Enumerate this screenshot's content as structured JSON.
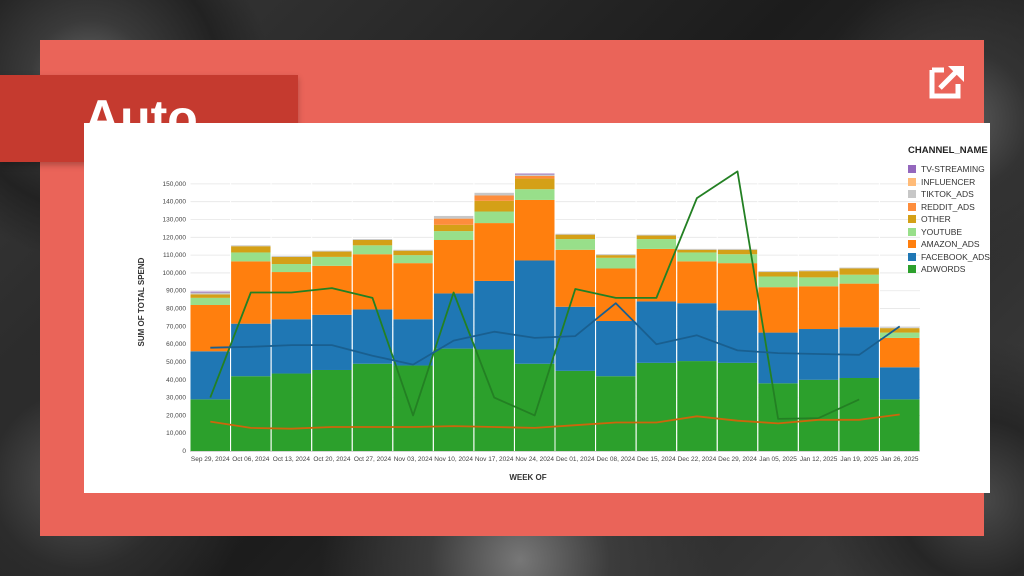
{
  "banner": {
    "label": "Auto"
  },
  "logo_icon": "arrow-square-logo-icon",
  "colors": {
    "coral": "#ea6459",
    "label_bg": "#c53a2f"
  },
  "chart_data": {
    "type": "bar",
    "stacked": true,
    "xlabel": "WEEK OF",
    "ylabel": "SUM OF TOTAL SPEND",
    "ylim": [
      0,
      155000
    ],
    "yticks": [
      0,
      10000,
      20000,
      30000,
      40000,
      50000,
      60000,
      70000,
      80000,
      90000,
      100000,
      110000,
      120000,
      130000,
      140000,
      150000
    ],
    "ytick_labels": [
      "0",
      "10,000",
      "20,000",
      "30,000",
      "40,000",
      "50,000",
      "60,000",
      "70,000",
      "80,000",
      "90,000",
      "100,000",
      "110,000",
      "120,000",
      "130,000",
      "140,000",
      "150,000"
    ],
    "grid": true,
    "legend_title": "CHANNEL_NAME",
    "legend_position": "right",
    "categories": [
      "Sep 29, 2024",
      "Oct 06, 2024",
      "Oct 13, 2024",
      "Oct 20, 2024",
      "Oct 27, 2024",
      "Nov 03, 2024",
      "Nov 10, 2024",
      "Nov 17, 2024",
      "Nov 24, 2024",
      "Dec 01, 2024",
      "Dec 08, 2024",
      "Dec 15, 2024",
      "Dec 22, 2024",
      "Dec 29, 2024",
      "Jan 05, 2025",
      "Jan 12, 2025",
      "Jan 19, 2025",
      "Jan 26, 2025"
    ],
    "series": [
      {
        "name": "ADWORDS",
        "color": "#2ca02c",
        "values": [
          29000,
          42000,
          43500,
          45500,
          49000,
          48000,
          57500,
          57000,
          49000,
          45000,
          42000,
          49500,
          50500,
          49500,
          38000,
          40000,
          41000,
          29000
        ]
      },
      {
        "name": "FACEBOOK_ADS",
        "color": "#1f77b4",
        "values": [
          27000,
          29500,
          30500,
          31000,
          30500,
          26000,
          31000,
          38500,
          58000,
          36000,
          31000,
          34500,
          32500,
          29500,
          28500,
          28500,
          28500,
          18000
        ]
      },
      {
        "name": "AMAZON_ADS",
        "color": "#ff7f0e",
        "values": [
          26000,
          35000,
          26500,
          27500,
          31000,
          31500,
          30000,
          32500,
          34000,
          32000,
          29500,
          29500,
          23500,
          26500,
          25500,
          24000,
          24500,
          16500
        ]
      },
      {
        "name": "YOUTUBE",
        "color": "#98df8a",
        "values": [
          4000,
          5000,
          4500,
          5000,
          5000,
          4500,
          5000,
          6500,
          6000,
          6000,
          6000,
          5500,
          5000,
          5000,
          6000,
          5000,
          5000,
          3000
        ]
      },
      {
        "name": "OTHER",
        "color": "#d4a017",
        "values": [
          2000,
          3500,
          4000,
          3000,
          3000,
          2500,
          3500,
          6000,
          6000,
          2500,
          1500,
          2000,
          1500,
          2500,
          2500,
          3500,
          3500,
          2500
        ]
      },
      {
        "name": "REDDIT_ADS",
        "color": "#fd8d3c",
        "values": [
          0,
          0,
          0,
          0,
          0,
          0,
          3500,
          3000,
          1500,
          0,
          0,
          0,
          0,
          0,
          0,
          0,
          0,
          0
        ]
      },
      {
        "name": "TIKTOK_ADS",
        "color": "#c7c7c7",
        "values": [
          1000,
          500,
          500,
          500,
          500,
          500,
          1500,
          1500,
          800,
          500,
          500,
          500,
          500,
          500,
          500,
          500,
          500,
          500
        ]
      },
      {
        "name": "INFLUENCER",
        "color": "#ffbb78",
        "values": [
          0,
          0,
          0,
          0,
          0,
          0,
          0,
          0,
          0,
          0,
          0,
          0,
          0,
          0,
          0,
          0,
          0,
          0
        ]
      },
      {
        "name": "TV-STREAMING",
        "color": "#9467bd",
        "values": [
          500,
          0,
          0,
          0,
          0,
          0,
          0,
          0,
          500,
          0,
          0,
          0,
          0,
          0,
          0,
          0,
          0,
          0
        ]
      }
    ],
    "lines": [
      {
        "color": "#2ca02c",
        "values": [
          30000,
          89000,
          89000,
          91500,
          86000,
          20000,
          89000,
          30000,
          20000,
          91000,
          86000,
          86000,
          142000,
          157000,
          18000,
          18500,
          29000,
          null
        ]
      },
      {
        "color": "#1f77b4",
        "values": [
          58000,
          58500,
          59500,
          59500,
          53500,
          48500,
          62000,
          67000,
          63500,
          64500,
          83000,
          60000,
          65000,
          56500,
          55000,
          54500,
          54000,
          70000
        ]
      },
      {
        "color": "#ff7f0e",
        "values": [
          16500,
          13000,
          12500,
          13500,
          13500,
          13500,
          14000,
          13500,
          13000,
          14500,
          16000,
          16000,
          19500,
          17000,
          15500,
          17500,
          17500,
          20500
        ]
      }
    ]
  },
  "legend": {
    "title": "CHANNEL_NAME",
    "items": [
      {
        "label": "TV-STREAMING",
        "color": "#9467bd"
      },
      {
        "label": "INFLUENCER",
        "color": "#ffbb78"
      },
      {
        "label": "TIKTOK_ADS",
        "color": "#c7c7c7"
      },
      {
        "label": "REDDIT_ADS",
        "color": "#fd8d3c"
      },
      {
        "label": "OTHER",
        "color": "#d4a017"
      },
      {
        "label": "YOUTUBE",
        "color": "#98df8a"
      },
      {
        "label": "AMAZON_ADS",
        "color": "#ff7f0e"
      },
      {
        "label": "FACEBOOK_ADS",
        "color": "#1f77b4"
      },
      {
        "label": "ADWORDS",
        "color": "#2ca02c"
      }
    ]
  }
}
